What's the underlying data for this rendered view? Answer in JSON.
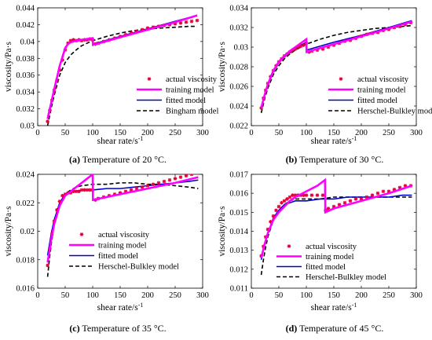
{
  "figure": {
    "panels": [
      {
        "id": "a",
        "tag": "(a)",
        "caption": "Temperature of 20 °C."
      },
      {
        "id": "b",
        "tag": "(b)",
        "caption": "Temperature of 30 °C."
      },
      {
        "id": "c",
        "tag": "(c)",
        "caption": "Temperature of 35 °C."
      },
      {
        "id": "d",
        "tag": "(d)",
        "caption": "Temperature of 45 °C."
      }
    ]
  },
  "colors": {
    "actual": "#e4003a",
    "training": "#ff00ff",
    "fitted": "#0000cc",
    "model": "#000000"
  },
  "chart_data": [
    {
      "type": "line",
      "panel": "a",
      "xlabel": "shear rate/s",
      "xlabel_sup": "-1",
      "ylabel": "viscosity/Pa·s",
      "xlim": [
        0,
        300
      ],
      "ylim": [
        0.03,
        0.044
      ],
      "xticks": [
        0,
        50,
        100,
        150,
        200,
        250,
        300
      ],
      "yticks": [
        0.03,
        0.032,
        0.034,
        0.036,
        0.038,
        0.04,
        0.042,
        0.044
      ],
      "ytick_labels": [
        "0.03",
        "0.032",
        "0.034",
        "0.036",
        "0.038",
        "0.04",
        "0.042",
        "0.044"
      ],
      "legend_position": "lower-right",
      "series": [
        {
          "name": "actual viscosity",
          "kind": "markers",
          "color_key": "actual",
          "x": [
            18,
            22,
            26,
            30,
            35,
            40,
            45,
            50,
            55,
            60,
            65,
            70,
            75,
            80,
            85,
            90,
            95,
            100,
            105,
            110,
            120,
            130,
            140,
            150,
            160,
            170,
            180,
            190,
            200,
            210,
            220,
            230,
            240,
            250,
            260,
            270,
            280,
            290
          ],
          "y": [
            0.0305,
            0.0318,
            0.033,
            0.0342,
            0.0354,
            0.0366,
            0.0378,
            0.039,
            0.0398,
            0.0401,
            0.0402,
            0.0401,
            0.0402,
            0.0401,
            0.0402,
            0.0402,
            0.0403,
            0.0402,
            0.0397,
            0.0398,
            0.04,
            0.0402,
            0.0404,
            0.0406,
            0.0408,
            0.041,
            0.0412,
            0.0414,
            0.0416,
            0.0417,
            0.0418,
            0.0419,
            0.042,
            0.0421,
            0.0422,
            0.0423,
            0.0424,
            0.0425
          ]
        },
        {
          "name": "training model",
          "kind": "thick",
          "color_key": "training",
          "x": [
            18,
            25,
            30,
            40,
            50,
            55,
            60,
            70,
            80,
            90,
            100,
            100.5,
            150,
            200,
            250,
            290
          ],
          "y": [
            0.0308,
            0.0328,
            0.0343,
            0.0371,
            0.0392,
            0.0397,
            0.0399,
            0.0401,
            0.0402,
            0.0403,
            0.0404,
            0.0396,
            0.0405,
            0.0414,
            0.0423,
            0.0431
          ]
        },
        {
          "name": "fitted model",
          "kind": "thin",
          "color_key": "fitted",
          "x": [
            18,
            25,
            30,
            40,
            50,
            55,
            60,
            70,
            80,
            90,
            100,
            100.5,
            150,
            200,
            250,
            290
          ],
          "y": [
            0.031,
            0.033,
            0.0344,
            0.0372,
            0.0393,
            0.0397,
            0.0399,
            0.0401,
            0.0402,
            0.0403,
            0.0404,
            0.0397,
            0.0406,
            0.0415,
            0.0424,
            0.0431
          ]
        },
        {
          "name": "Bingham model",
          "kind": "dashed",
          "color_key": "model",
          "x": [
            18,
            25,
            30,
            40,
            50,
            60,
            70,
            80,
            100,
            125,
            150,
            175,
            200,
            225,
            250,
            275,
            290
          ],
          "y": [
            0.03,
            0.0322,
            0.0336,
            0.036,
            0.0375,
            0.0384,
            0.039,
            0.0395,
            0.0401,
            0.0406,
            0.041,
            0.0413,
            0.0415,
            0.0416,
            0.0417,
            0.0418,
            0.0418
          ]
        }
      ]
    },
    {
      "type": "line",
      "panel": "b",
      "xlabel": "shear rate/s",
      "xlabel_sup": "-1",
      "ylabel": "viscosity/Pa·s",
      "xlim": [
        0,
        300
      ],
      "ylim": [
        0.022,
        0.034
      ],
      "xticks": [
        0,
        50,
        100,
        150,
        200,
        250,
        300
      ],
      "yticks": [
        0.022,
        0.024,
        0.026,
        0.028,
        0.03,
        0.032,
        0.034
      ],
      "ytick_labels": [
        "0.022",
        "0.024",
        "0.026",
        "0.028",
        "0.03",
        "0.032",
        "0.034"
      ],
      "legend_position": "lower-right",
      "series": [
        {
          "name": "actual viscosity",
          "kind": "markers",
          "color_key": "actual",
          "x": [
            18,
            22,
            26,
            30,
            35,
            40,
            45,
            50,
            55,
            60,
            65,
            70,
            75,
            80,
            85,
            90,
            95,
            100,
            105,
            110,
            120,
            130,
            140,
            150,
            160,
            170,
            180,
            190,
            200,
            210,
            220,
            230,
            240,
            250,
            260,
            270,
            280,
            290
          ],
          "y": [
            0.0238,
            0.0248,
            0.0256,
            0.0263,
            0.027,
            0.0276,
            0.0281,
            0.0285,
            0.0288,
            0.0291,
            0.0293,
            0.0295,
            0.0297,
            0.0298,
            0.03,
            0.0301,
            0.0302,
            0.0304,
            0.0295,
            0.0296,
            0.0297,
            0.0298,
            0.03,
            0.0302,
            0.0304,
            0.0306,
            0.0307,
            0.0309,
            0.0311,
            0.0313,
            0.0314,
            0.0315,
            0.0317,
            0.0318,
            0.032,
            0.0321,
            0.0323,
            0.0325
          ]
        },
        {
          "name": "training model",
          "kind": "thick",
          "color_key": "training",
          "x": [
            18,
            25,
            30,
            40,
            50,
            60,
            70,
            80,
            90,
            100,
            100.5,
            150,
            200,
            250,
            292
          ],
          "y": [
            0.0238,
            0.0253,
            0.0262,
            0.0276,
            0.0285,
            0.0291,
            0.0296,
            0.03,
            0.0304,
            0.0308,
            0.0295,
            0.0303,
            0.0311,
            0.0319,
            0.0326
          ]
        },
        {
          "name": "fitted model",
          "kind": "thin",
          "color_key": "fitted",
          "x": [
            18,
            25,
            30,
            40,
            50,
            60,
            70,
            80,
            90,
            100,
            100.5,
            150,
            200,
            250,
            292
          ],
          "y": [
            0.0238,
            0.0252,
            0.0261,
            0.0275,
            0.0284,
            0.029,
            0.0295,
            0.0299,
            0.0302,
            0.0305,
            0.0297,
            0.0305,
            0.0312,
            0.032,
            0.0327
          ]
        },
        {
          "name": "Herschel-Bulkley model",
          "kind": "dashed",
          "color_key": "model",
          "x": [
            18,
            25,
            30,
            40,
            50,
            60,
            70,
            80,
            100,
            125,
            150,
            175,
            200,
            225,
            250,
            275,
            292
          ],
          "y": [
            0.0233,
            0.0249,
            0.0258,
            0.0272,
            0.0281,
            0.0288,
            0.0293,
            0.0297,
            0.0303,
            0.0308,
            0.0312,
            0.0315,
            0.0317,
            0.0319,
            0.032,
            0.0321,
            0.0322
          ]
        }
      ]
    },
    {
      "type": "line",
      "panel": "c",
      "xlabel": "shear rate/s",
      "xlabel_sup": "-1",
      "ylabel": "viscosity/Pa·s",
      "xlim": [
        0,
        300
      ],
      "ylim": [
        0.016,
        0.024
      ],
      "xticks": [
        0,
        50,
        100,
        150,
        200,
        250,
        300
      ],
      "yticks": [
        0.016,
        0.018,
        0.02,
        0.022,
        0.024
      ],
      "ytick_labels": [
        "0.016",
        "0.018",
        "0.02",
        "0.022",
        "0.024"
      ],
      "legend_position": "lower-left",
      "series": [
        {
          "name": "actual viscosity",
          "kind": "markers",
          "color_key": "actual",
          "x": [
            18,
            22,
            26,
            30,
            35,
            40,
            45,
            50,
            55,
            60,
            65,
            70,
            75,
            80,
            85,
            90,
            95,
            100,
            105,
            110,
            120,
            130,
            140,
            150,
            160,
            170,
            180,
            190,
            200,
            210,
            220,
            230,
            240,
            250,
            260,
            270,
            280,
            290
          ],
          "y": [
            0.0176,
            0.0188,
            0.0198,
            0.0207,
            0.0215,
            0.0221,
            0.0225,
            0.0226,
            0.0227,
            0.0227,
            0.0228,
            0.0228,
            0.0228,
            0.0229,
            0.0229,
            0.0229,
            0.0229,
            0.0229,
            0.0222,
            0.0223,
            0.0224,
            0.0225,
            0.0226,
            0.0227,
            0.0228,
            0.0229,
            0.023,
            0.0231,
            0.0232,
            0.0233,
            0.0234,
            0.0235,
            0.0236,
            0.0237,
            0.0238,
            0.0239,
            0.024,
            0.0241
          ]
        },
        {
          "name": "training model",
          "kind": "thick",
          "color_key": "training",
          "x": [
            18,
            25,
            30,
            40,
            50,
            60,
            70,
            80,
            90,
            100,
            100.5,
            150,
            200,
            250,
            292
          ],
          "y": [
            0.0178,
            0.0195,
            0.0205,
            0.0218,
            0.0225,
            0.0228,
            0.0231,
            0.0234,
            0.0237,
            0.024,
            0.0222,
            0.0226,
            0.023,
            0.0234,
            0.0238
          ]
        },
        {
          "name": "fitted model",
          "kind": "thin",
          "color_key": "fitted",
          "x": [
            18,
            25,
            30,
            40,
            50,
            60,
            70,
            80,
            100,
            125,
            150,
            175,
            200,
            225,
            250,
            275,
            292
          ],
          "y": [
            0.0183,
            0.0199,
            0.0208,
            0.022,
            0.0226,
            0.0228,
            0.0228,
            0.0229,
            0.0229,
            0.023,
            0.023,
            0.0231,
            0.0232,
            0.0233,
            0.0234,
            0.0235,
            0.0236
          ]
        },
        {
          "name": "Herschel-Bulkley model",
          "kind": "dashed",
          "color_key": "model",
          "x": [
            18,
            22,
            25,
            30,
            40,
            50,
            60,
            70,
            80,
            100,
            125,
            150,
            175,
            200,
            225,
            250,
            275,
            292
          ],
          "y": [
            0.0168,
            0.0183,
            0.0192,
            0.0205,
            0.0219,
            0.0226,
            0.0229,
            0.0231,
            0.0232,
            0.0233,
            0.0233,
            0.0234,
            0.0234,
            0.0233,
            0.0233,
            0.0232,
            0.0231,
            0.023
          ]
        }
      ]
    },
    {
      "type": "line",
      "panel": "d",
      "xlabel": "shear rate/s",
      "xlabel_sup": "-1",
      "ylabel": "viscosity/Pa·s",
      "xlim": [
        0,
        300
      ],
      "ylim": [
        0.011,
        0.017
      ],
      "xticks": [
        0,
        50,
        100,
        150,
        200,
        250,
        300
      ],
      "yticks": [
        0.011,
        0.012,
        0.013,
        0.014,
        0.015,
        0.016,
        0.017
      ],
      "ytick_labels": [
        "0.011",
        "0.012",
        "0.013",
        "0.014",
        "0.015",
        "0.016",
        "0.017"
      ],
      "legend_position": "lower-center",
      "series": [
        {
          "name": "actual viscosity",
          "kind": "markers",
          "color_key": "actual",
          "x": [
            18,
            22,
            26,
            30,
            35,
            40,
            45,
            50,
            55,
            60,
            65,
            70,
            75,
            80,
            85,
            90,
            95,
            100,
            110,
            120,
            130,
            135,
            140,
            150,
            160,
            170,
            180,
            190,
            200,
            210,
            220,
            230,
            240,
            250,
            260,
            270,
            280,
            290
          ],
          "y": [
            0.0127,
            0.0132,
            0.0137,
            0.0141,
            0.0145,
            0.0148,
            0.0151,
            0.0153,
            0.0155,
            0.0156,
            0.0157,
            0.0158,
            0.0159,
            0.0159,
            0.0159,
            0.0159,
            0.0159,
            0.0159,
            0.0159,
            0.0159,
            0.0159,
            0.0151,
            0.0152,
            0.0153,
            0.0154,
            0.0155,
            0.0156,
            0.0157,
            0.0157,
            0.0158,
            0.0159,
            0.016,
            0.0161,
            0.0161,
            0.0162,
            0.0163,
            0.0164,
            0.0164
          ]
        },
        {
          "name": "training model",
          "kind": "thick",
          "color_key": "training",
          "x": [
            18,
            25,
            30,
            40,
            50,
            60,
            70,
            80,
            100,
            120,
            134,
            134.5,
            150,
            200,
            250,
            292
          ],
          "y": [
            0.0126,
            0.0134,
            0.0139,
            0.0146,
            0.015,
            0.0153,
            0.0156,
            0.0158,
            0.0161,
            0.0164,
            0.0167,
            0.015,
            0.0152,
            0.0156,
            0.016,
            0.0164
          ]
        },
        {
          "name": "fitted model",
          "kind": "thin",
          "color_key": "fitted",
          "x": [
            18,
            25,
            30,
            40,
            50,
            60,
            70,
            80,
            100,
            125,
            150,
            175,
            200,
            225,
            250,
            275,
            292
          ],
          "y": [
            0.0125,
            0.0134,
            0.0139,
            0.0147,
            0.0151,
            0.0154,
            0.0155,
            0.0156,
            0.0156,
            0.0157,
            0.0157,
            0.0158,
            0.0158,
            0.0158,
            0.0158,
            0.0159,
            0.0159
          ]
        },
        {
          "name": "Herschel-Bulkley model",
          "kind": "dashed",
          "color_key": "model",
          "x": [
            18,
            22,
            25,
            30,
            40,
            50,
            60,
            70,
            80,
            100,
            125,
            150,
            175,
            200,
            225,
            250,
            275,
            292
          ],
          "y": [
            0.0117,
            0.0125,
            0.013,
            0.0137,
            0.0146,
            0.0151,
            0.0154,
            0.0156,
            0.0157,
            0.0157,
            0.0157,
            0.0158,
            0.0158,
            0.0158,
            0.0158,
            0.0158,
            0.0158,
            0.0158
          ]
        }
      ]
    }
  ]
}
